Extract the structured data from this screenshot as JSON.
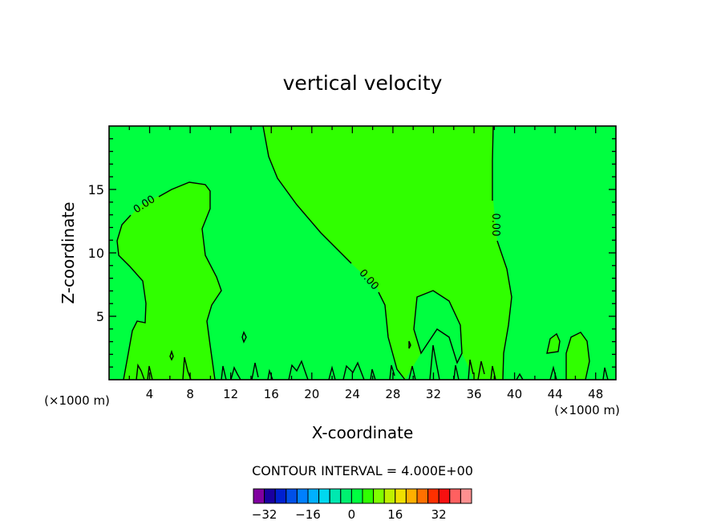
{
  "chart_data": {
    "type": "contour",
    "title": "vertical velocity",
    "xlabel": "X-coordinate",
    "ylabel": "Z-coordinate",
    "x_unit": "(×1000 m)",
    "xlim": [
      0,
      50
    ],
    "ylim": [
      0,
      20
    ],
    "x_ticks": [
      4,
      8,
      12,
      16,
      20,
      24,
      28,
      32,
      36,
      40,
      44,
      48
    ],
    "y_ticks": [
      5,
      10,
      15
    ],
    "contour_label": "0.00",
    "contour_interval_text": "CONTOUR INTERVAL = 4.000E+00",
    "colorbar": {
      "min": -36,
      "step": 4,
      "tick_values": [
        -32,
        -16,
        0,
        16,
        32
      ],
      "colors": [
        "#8000a0",
        "#1a00a0",
        "#0020d0",
        "#0050e8",
        "#0080ff",
        "#00b0ff",
        "#00d8f0",
        "#00e8b0",
        "#00f070",
        "#00ff40",
        "#30ff00",
        "#80ff00",
        "#c0f000",
        "#f0e000",
        "#ffb000",
        "#ff7000",
        "#ff3000",
        "#f81010",
        "#ff6060",
        "#ff9090"
      ]
    },
    "fill_colors": {
      "background": "#00ff40",
      "positive": "#30ff00"
    }
  }
}
